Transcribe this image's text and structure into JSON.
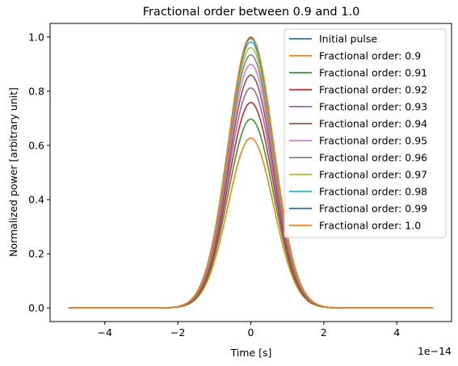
{
  "chart_data": {
    "type": "line",
    "title": "Fractional order between 0.9 and 1.0",
    "xlabel": "Time [s]",
    "ylabel": "Normalized power [arbitrary unit]",
    "x_offset_label": "1e−14",
    "xlim": [
      -5.5,
      5.5
    ],
    "ylim": [
      -0.05,
      1.05
    ],
    "x_ticks": [
      -4,
      -2,
      0,
      2,
      4
    ],
    "x_tick_labels": [
      "−4",
      "−2",
      "0",
      "2",
      "4"
    ],
    "y_ticks": [
      0.0,
      0.2,
      0.4,
      0.6,
      0.8,
      1.0
    ],
    "y_tick_labels": [
      "0.0",
      "0.2",
      "0.4",
      "0.6",
      "0.8",
      "1.0"
    ],
    "x_range": [
      -5,
      5
    ],
    "grid": false,
    "legend_position": "top-right",
    "series": [
      {
        "name": "Initial pulse",
        "peak": 1.0,
        "color": "#1f77b4"
      },
      {
        "name": "Fractional order: 0.9",
        "peak": 0.627,
        "color": "#ff7f0e"
      },
      {
        "name": "Fractional order: 0.91",
        "peak": 0.697,
        "color": "#2ca02c"
      },
      {
        "name": "Fractional order: 0.92",
        "peak": 0.758,
        "color": "#d62728"
      },
      {
        "name": "Fractional order: 0.93",
        "peak": 0.812,
        "color": "#9467bd"
      },
      {
        "name": "Fractional order: 0.94",
        "peak": 0.859,
        "color": "#8c564b"
      },
      {
        "name": "Fractional order: 0.95",
        "peak": 0.899,
        "color": "#e377c2"
      },
      {
        "name": "Fractional order: 0.96",
        "peak": 0.934,
        "color": "#7f7f7f"
      },
      {
        "name": "Fractional order: 0.97",
        "peak": 0.961,
        "color": "#bcbd22"
      },
      {
        "name": "Fractional order: 0.98",
        "peak": 0.982,
        "color": "#17becf"
      },
      {
        "name": "Fractional order: 0.99",
        "peak": 0.995,
        "color": "#1f77b4"
      },
      {
        "name": "Fractional order: 1.0",
        "peak": 1.0,
        "color": "#ff7f0e"
      }
    ]
  }
}
